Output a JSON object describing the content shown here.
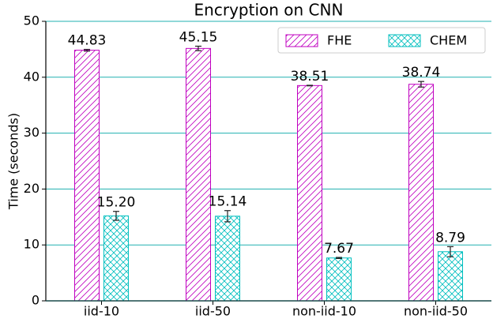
{
  "chart_data": {
    "type": "bar",
    "title": "Encryption on CNN",
    "y_label": "Time (seconds)",
    "categories": [
      "iid-10",
      "iid-50",
      "non-iid-10",
      "non-iid-50"
    ],
    "series": [
      {
        "name": "FHE",
        "color": "#c000c0",
        "hatch": "diagonal",
        "values": [
          44.83,
          45.15,
          38.51,
          38.74
        ],
        "value_labels": [
          "44.83",
          "45.15",
          "38.51",
          "38.74"
        ],
        "errors": [
          0.15,
          0.4,
          0.05,
          0.5
        ]
      },
      {
        "name": "CHEM",
        "color": "#00bfbf",
        "hatch": "cross",
        "values": [
          15.2,
          15.14,
          7.67,
          8.79
        ],
        "value_labels": [
          "15.20",
          "15.14",
          "7.67",
          "8.79"
        ],
        "errors": [
          0.8,
          1.0,
          0.1,
          0.9
        ]
      }
    ],
    "ylim": [
      0,
      50
    ],
    "yticks": [
      0,
      10,
      20,
      30,
      40,
      50
    ],
    "grid": true,
    "grid_color": "#20b0b0",
    "legend": "upper right"
  }
}
